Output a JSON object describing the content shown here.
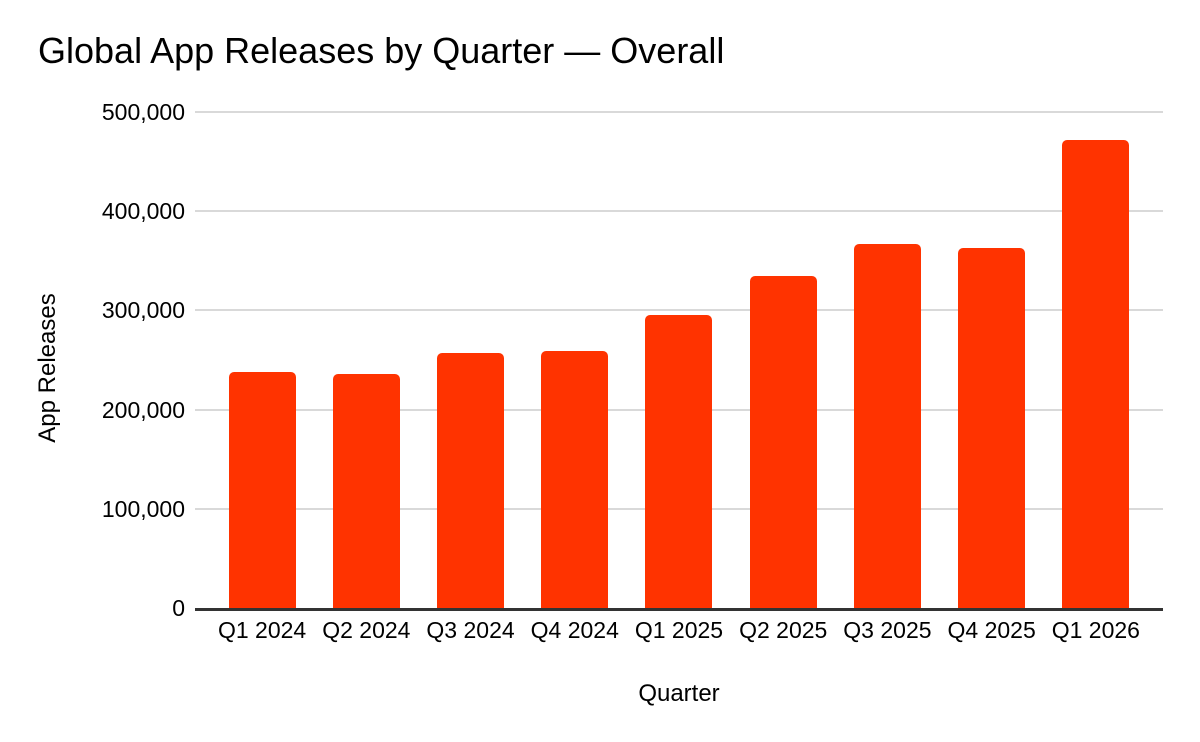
{
  "chart_data": {
    "type": "bar",
    "title": "Global App Releases by Quarter — Overall",
    "xlabel": "Quarter",
    "ylabel": "App Releases",
    "categories": [
      "Q1 2024",
      "Q2 2024",
      "Q3 2024",
      "Q4 2024",
      "Q1 2025",
      "Q2 2025",
      "Q3 2025",
      "Q4 2025",
      "Q1 2026"
    ],
    "values": [
      238000,
      236000,
      257000,
      259000,
      295000,
      335000,
      367000,
      363000,
      472000
    ],
    "ylim": [
      0,
      500000
    ],
    "yticks": [
      0,
      100000,
      200000,
      300000,
      400000,
      500000
    ],
    "ytick_labels": [
      "0",
      "100,000",
      "200,000",
      "300,000",
      "400,000",
      "500,000"
    ],
    "grid": true,
    "legend": false,
    "colors": {
      "bar": "#FF3300",
      "gridline": "#D9D9D9",
      "axis": "#333333",
      "text": "#000000",
      "background": "#FFFFFF"
    }
  }
}
